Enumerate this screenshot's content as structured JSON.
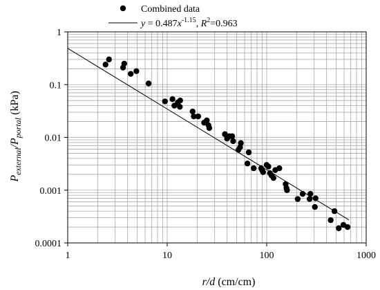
{
  "chart_data": {
    "type": "scatter",
    "x_scale": "log",
    "y_scale": "log",
    "xlim": [
      1,
      1000
    ],
    "ylim": [
      0.0001,
      1
    ],
    "grid": true,
    "legend_position": "top",
    "x_ticks": [
      "1",
      "10",
      "100",
      "1000"
    ],
    "y_ticks": [
      "1",
      "0.1",
      "0.01",
      "0.001",
      "0.0001"
    ],
    "xlabel": {
      "prefix": "r/d",
      "suffix": " (cm/cm)"
    },
    "ylabel": {
      "main1": "P",
      "sub1": "external",
      "slash": "/P",
      "sub2": "portal",
      "units": " (kPa)"
    },
    "legend": {
      "data_label": "Combined data",
      "fit_label_pre": "y",
      "fit_label_mid": " = 0.487",
      "fit_label_x": "x",
      "fit_label_exp": "-1.15",
      "fit_label_sep": ", ",
      "fit_label_r": "R",
      "fit_label_r_exp": "2",
      "fit_label_r_val": "=0.963"
    },
    "fit": {
      "coefficient": 0.487,
      "exponent": -1.15,
      "x_range": [
        1,
        670
      ]
    },
    "colors": {
      "points": "#000000",
      "line": "#000000",
      "grid": "#a6a6a6"
    },
    "series": [
      {
        "name": "Combined data",
        "points": [
          [
            2.4,
            0.24
          ],
          [
            2.6,
            0.3
          ],
          [
            3.6,
            0.21
          ],
          [
            3.7,
            0.25
          ],
          [
            4.3,
            0.16
          ],
          [
            4.9,
            0.18
          ],
          [
            6.5,
            0.105
          ],
          [
            9.5,
            0.048
          ],
          [
            11.3,
            0.053
          ],
          [
            11.8,
            0.04
          ],
          [
            12.8,
            0.046
          ],
          [
            13.4,
            0.038
          ],
          [
            13.5,
            0.05
          ],
          [
            18,
            0.031
          ],
          [
            18.5,
            0.025
          ],
          [
            20.5,
            0.025
          ],
          [
            23.5,
            0.019
          ],
          [
            25,
            0.021
          ],
          [
            26,
            0.017
          ],
          [
            26.5,
            0.015
          ],
          [
            38,
            0.0115
          ],
          [
            40,
            0.0095
          ],
          [
            42,
            0.0105
          ],
          [
            45,
            0.0105
          ],
          [
            46,
            0.0085
          ],
          [
            52,
            0.0058
          ],
          [
            54,
            0.0065
          ],
          [
            55,
            0.0078
          ],
          [
            64,
            0.0032
          ],
          [
            66,
            0.0052
          ],
          [
            74,
            0.0026
          ],
          [
            88,
            0.0026
          ],
          [
            90,
            0.0024
          ],
          [
            92,
            0.0022
          ],
          [
            100,
            0.003
          ],
          [
            104,
            0.0028
          ],
          [
            108,
            0.0021
          ],
          [
            112,
            0.0019
          ],
          [
            117,
            0.0017
          ],
          [
            122,
            0.0024
          ],
          [
            134,
            0.0026
          ],
          [
            155,
            0.0013
          ],
          [
            158,
            0.0011
          ],
          [
            160,
            0.001
          ],
          [
            205,
            0.00068
          ],
          [
            230,
            0.00085
          ],
          [
            270,
            0.00068
          ],
          [
            275,
            0.00085
          ],
          [
            305,
            0.00048
          ],
          [
            310,
            0.0007
          ],
          [
            440,
            0.00027
          ],
          [
            480,
            0.0004
          ],
          [
            530,
            0.00019
          ],
          [
            590,
            0.00022
          ],
          [
            650,
            0.0002
          ]
        ]
      }
    ]
  }
}
